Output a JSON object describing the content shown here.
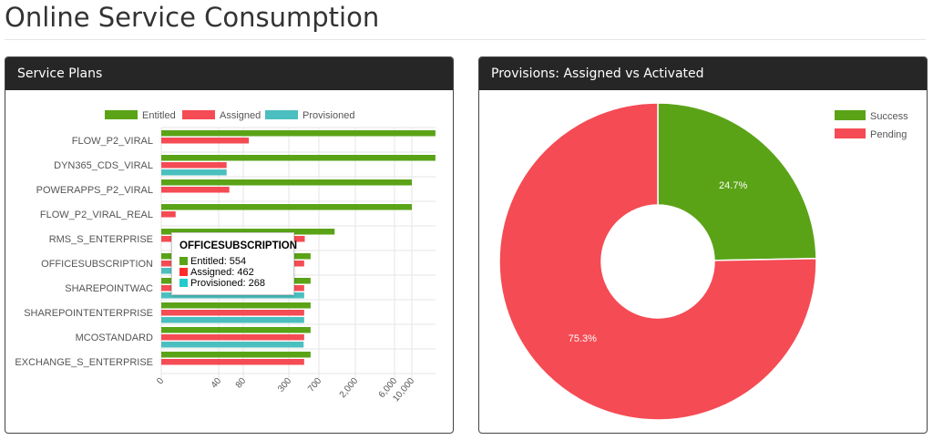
{
  "page_title": "Online Service Consumption",
  "panels": {
    "left_title": "Service Plans",
    "right_title": "Provisions: Assigned vs Activated"
  },
  "colors": {
    "entitled": "#5aa317",
    "assigned": "#f54b54",
    "provisioned": "#4bbfbf",
    "success": "#5aa317",
    "pending": "#f54b54"
  },
  "chart_data": [
    {
      "type": "bar",
      "orientation": "horizontal",
      "scale": "log-like",
      "categories": [
        "FLOW_P2_VIRAL",
        "DYN365_CDS_VIRAL",
        "POWERAPPS_P2_VIRAL",
        "FLOW_P2_VIRAL_REAL",
        "RMS_S_ENTERPRISE",
        "OFFICESUBSCRIPTION",
        "SHAREPOINTWAC",
        "SHAREPOINTENTERPRISE",
        "MCOSTANDARD",
        "EXCHANGE_S_ENTERPRISE"
      ],
      "series": [
        {
          "name": "Entitled",
          "values": [
            20000,
            20000,
            10000,
            10000,
            1100,
            554,
            554,
            554,
            554,
            554
          ]
        },
        {
          "name": "Assigned",
          "values": [
            94,
            50,
            54,
            10,
            470,
            462,
            462,
            462,
            462,
            462
          ]
        },
        {
          "name": "Provisioned",
          "values": [
            0,
            50,
            0,
            0,
            0,
            268,
            462,
            462,
            455,
            0
          ]
        }
      ],
      "xticks": [
        "0",
        "40",
        "80",
        "300",
        "700",
        "2,000",
        "6,000",
        "10,000"
      ],
      "grid": true,
      "legend": "top",
      "tooltip": {
        "title": "OFFICESUBSCRIPTION",
        "lines": [
          "Entitled: 554",
          "Assigned: 462",
          "Provisioned: 268"
        ]
      }
    },
    {
      "type": "pie",
      "donut": true,
      "labels": [
        "Success",
        "Pending"
      ],
      "values": [
        24.7,
        75.3
      ],
      "data_labels": [
        "24.7%",
        "75.3%"
      ],
      "legend": "top-right"
    }
  ]
}
